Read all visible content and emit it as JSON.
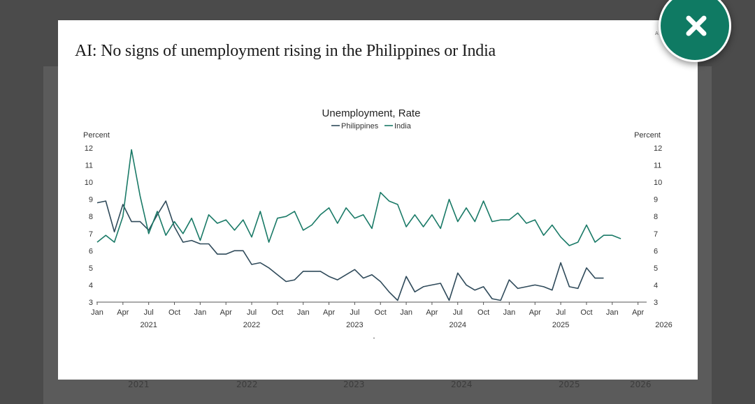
{
  "modal": {
    "title": "AI: No signs of unemployment rising in the Philippines or India",
    "corner_text": "A",
    "close_icon": "close-icon"
  },
  "background": {
    "years": [
      "2021",
      "2022",
      "2023",
      "2024",
      "2025",
      "2026"
    ]
  },
  "colors": {
    "philippines": "#2f4a5a",
    "india": "#1a7a67",
    "close_button": "#0f7a63"
  },
  "chart_data": {
    "type": "line",
    "title": "Unemployment, Rate",
    "ylabel_left": "Percent",
    "ylabel_right": "Percent",
    "ylim": [
      3,
      12
    ],
    "yticks": [
      3,
      4,
      5,
      6,
      7,
      8,
      9,
      10,
      11,
      12
    ],
    "x_start": "2021-01",
    "n_months": 64,
    "month_ticks": [
      "Jan",
      "Apr",
      "Jul",
      "Oct",
      "Jan",
      "Apr",
      "Jul",
      "Oct",
      "Jan",
      "Apr",
      "Jul",
      "Oct",
      "Jan",
      "Apr",
      "Jul",
      "Oct",
      "Jan",
      "Apr",
      "Jul",
      "Oct",
      "Jan",
      "Apr"
    ],
    "year_labels": [
      "2021",
      "2022",
      "2023",
      "2024",
      "2025",
      "2026"
    ],
    "series": [
      {
        "name": "Philippines",
        "values": [
          8.8,
          8.9,
          7.1,
          8.7,
          7.7,
          7.7,
          7.2,
          8.1,
          8.9,
          7.4,
          6.5,
          6.6,
          6.4,
          6.4,
          5.8,
          5.8,
          6.0,
          6.0,
          5.2,
          5.3,
          5.0,
          4.6,
          4.2,
          4.3,
          4.8,
          4.8,
          4.8,
          4.5,
          4.3,
          4.6,
          4.9,
          4.4,
          4.6,
          4.2,
          3.6,
          3.1,
          4.5,
          3.6,
          3.9,
          4.0,
          4.1,
          3.1,
          4.7,
          4.0,
          3.7,
          3.9,
          3.2,
          3.1,
          4.3,
          3.8,
          3.9,
          4.0,
          3.9,
          3.7,
          5.3,
          3.9,
          3.8,
          5.0,
          4.4,
          4.4
        ]
      },
      {
        "name": "India",
        "values": [
          6.5,
          6.9,
          6.5,
          8.0,
          11.9,
          9.2,
          7.0,
          8.3,
          6.9,
          7.7,
          7.0,
          7.9,
          6.6,
          8.1,
          7.6,
          7.8,
          7.2,
          7.8,
          6.8,
          8.3,
          6.5,
          7.9,
          8.0,
          8.3,
          7.2,
          7.5,
          8.1,
          8.5,
          7.6,
          8.5,
          7.9,
          8.1,
          7.3,
          9.4,
          8.9,
          8.7,
          7.4,
          8.1,
          7.4,
          8.1,
          7.3,
          9.0,
          7.7,
          8.5,
          7.7,
          8.9,
          7.7,
          7.8,
          7.8,
          8.2,
          7.6,
          7.8,
          6.9,
          7.5,
          6.8,
          6.3,
          6.5,
          7.5,
          6.5,
          6.9,
          6.9,
          6.7
        ]
      }
    ]
  }
}
